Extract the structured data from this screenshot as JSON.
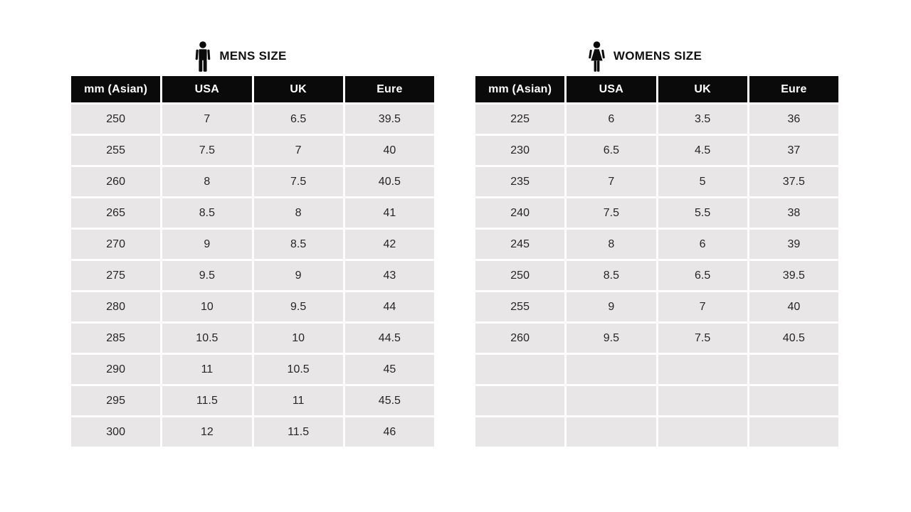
{
  "colors": {
    "page_bg": "#ffffff",
    "header_bg": "#0a0a0a",
    "header_text": "#ffffff",
    "cell_bg": "#e8e6e6",
    "cell_text": "#262626",
    "title_text": "#111111"
  },
  "mens": {
    "title": "MENS SIZE",
    "icon": "male-icon",
    "columns": [
      "mm (Asian)",
      "USA",
      "UK",
      "Eure"
    ],
    "rows": [
      [
        "250",
        "7",
        "6.5",
        "39.5"
      ],
      [
        "255",
        "7.5",
        "7",
        "40"
      ],
      [
        "260",
        "8",
        "7.5",
        "40.5"
      ],
      [
        "265",
        "8.5",
        "8",
        "41"
      ],
      [
        "270",
        "9",
        "8.5",
        "42"
      ],
      [
        "275",
        "9.5",
        "9",
        "43"
      ],
      [
        "280",
        "10",
        "9.5",
        "44"
      ],
      [
        "285",
        "10.5",
        "10",
        "44.5"
      ],
      [
        "290",
        "11",
        "10.5",
        "45"
      ],
      [
        "295",
        "11.5",
        "11",
        "45.5"
      ],
      [
        "300",
        "12",
        "11.5",
        "46"
      ]
    ]
  },
  "womens": {
    "title": "WOMENS SIZE",
    "icon": "female-icon",
    "columns": [
      "mm (Asian)",
      "USA",
      "UK",
      "Eure"
    ],
    "rows": [
      [
        "225",
        "6",
        "3.5",
        "36"
      ],
      [
        "230",
        "6.5",
        "4.5",
        "37"
      ],
      [
        "235",
        "7",
        "5",
        "37.5"
      ],
      [
        "240",
        "7.5",
        "5.5",
        "38"
      ],
      [
        "245",
        "8",
        "6",
        "39"
      ],
      [
        "250",
        "8.5",
        "6.5",
        "39.5"
      ],
      [
        "255",
        "9",
        "7",
        "40"
      ],
      [
        "260",
        "9.5",
        "7.5",
        "40.5"
      ],
      [
        "",
        "",
        "",
        ""
      ],
      [
        "",
        "",
        "",
        ""
      ],
      [
        "",
        "",
        "",
        ""
      ]
    ]
  }
}
